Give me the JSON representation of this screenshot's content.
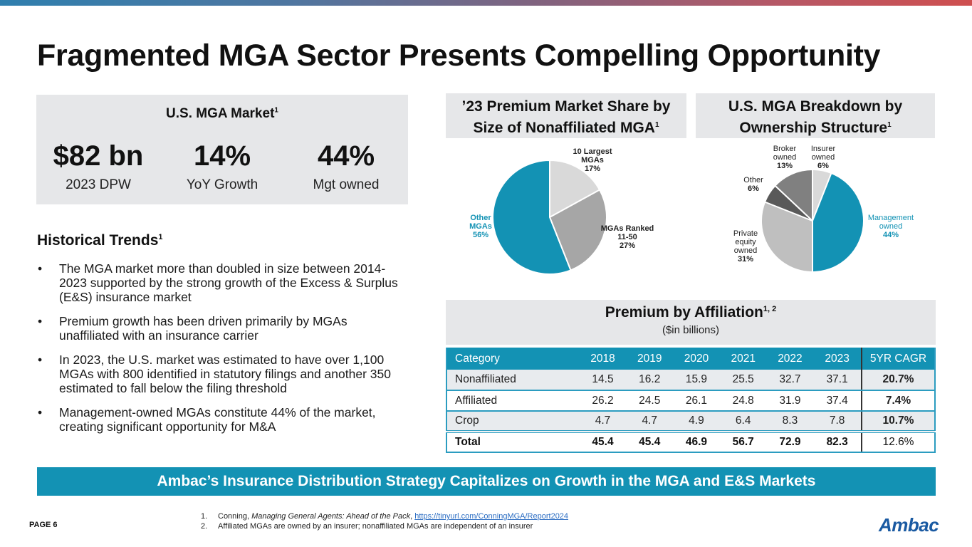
{
  "page": {
    "title": "Fragmented MGA Sector Presents Compelling Opportunity",
    "page_number": "PAGE 6",
    "logo": "Ambac",
    "colors": {
      "accent": "#1392b4",
      "gray_box": "#e6e7e9",
      "logo": "#1a5aa2"
    }
  },
  "market": {
    "title": "U.S. MGA Market",
    "title_sup": "1",
    "stats": [
      {
        "value": "$82 bn",
        "label": "2023 DPW"
      },
      {
        "value": "14%",
        "label": "YoY Growth"
      },
      {
        "value": "44%",
        "label": "Mgt owned"
      }
    ]
  },
  "trends": {
    "title": "Historical Trends",
    "title_sup": "1",
    "bullets": [
      "The MGA market more than doubled in size between 2014-2023 supported by the strong growth of the Excess & Surplus (E&S) insurance market",
      "Premium growth has been driven primarily by MGAs unaffiliated with an insurance carrier",
      "In 2023, the U.S. market was estimated to have over 1,100 MGAs with 800 identified in statutory filings and another 350 estimated to fall below the filing threshold",
      "Management-owned MGAs constitute 44% of the market, creating significant opportunity for M&A"
    ]
  },
  "share_section": {
    "title": "’23 Premium Market Share by Size of Nonaffiliated MGA",
    "sup": "1"
  },
  "ownership_section": {
    "title": "U.S. MGA Breakdown by Ownership Structure",
    "sup": "1"
  },
  "affiliation": {
    "title": "Premium by Affiliation",
    "sup": "1, 2",
    "subtitle": "($in billions)"
  },
  "chart_data": [
    {
      "type": "pie",
      "title": "’23 Premium Market Share by Size of Nonaffiliated MGA",
      "slices": [
        {
          "label": "10 Largest MGAs",
          "value": 17,
          "pct": "17%",
          "color": "#d9d9d9"
        },
        {
          "label": "MGAs Ranked 11-50",
          "value": 27,
          "pct": "27%",
          "color": "#a6a6a6"
        },
        {
          "label": "Other MGAs",
          "value": 56,
          "pct": "56%",
          "color": "#1392b4",
          "highlight": true
        }
      ]
    },
    {
      "type": "pie",
      "title": "U.S. MGA Breakdown by Ownership Structure",
      "slices": [
        {
          "label": "Insurer owned",
          "value": 6,
          "pct": "6%",
          "color": "#d9d9d9"
        },
        {
          "label": "Management owned",
          "value": 44,
          "pct": "44%",
          "color": "#1392b4",
          "highlight": true
        },
        {
          "label": "Private equity owned",
          "value": 31,
          "pct": "31%",
          "color": "#bfbfbf"
        },
        {
          "label": "Other",
          "value": 6,
          "pct": "6%",
          "color": "#595959"
        },
        {
          "label": "Broker owned",
          "value": 13,
          "pct": "13%",
          "color": "#808080"
        }
      ]
    },
    {
      "type": "table",
      "title": "Premium by Affiliation ($in billions)",
      "columns": [
        "Category",
        "2018",
        "2019",
        "2020",
        "2021",
        "2022",
        "2023",
        "5YR CAGR"
      ],
      "rows": [
        [
          "Nonaffiliated",
          "14.5",
          "16.2",
          "15.9",
          "25.5",
          "32.7",
          "37.1",
          "20.7%"
        ],
        [
          "Affiliated",
          "26.2",
          "24.5",
          "26.1",
          "24.8",
          "31.9",
          "37.4",
          "7.4%"
        ],
        [
          "Crop",
          "4.7",
          "4.7",
          "4.9",
          "6.4",
          "8.3",
          "7.8",
          "10.7%"
        ],
        [
          "Total",
          "45.4",
          "45.4",
          "46.9",
          "56.7",
          "72.9",
          "82.3",
          "12.6%"
        ]
      ]
    }
  ],
  "banner": "Ambac’s Insurance Distribution Strategy Capitalizes on Growth in the MGA and E&S Markets",
  "footnotes": [
    {
      "index": "1.",
      "text": "Conning, ",
      "italic": "Managing General Agents: Ahead of the Pack",
      "after": ", ",
      "link": "https://tinyurl.com/ConningMGA/Report2024"
    },
    {
      "index": "2.",
      "text": "Affiliated MGAs are owned by an insurer; nonaffiliated MGAs are independent of an insurer"
    }
  ]
}
